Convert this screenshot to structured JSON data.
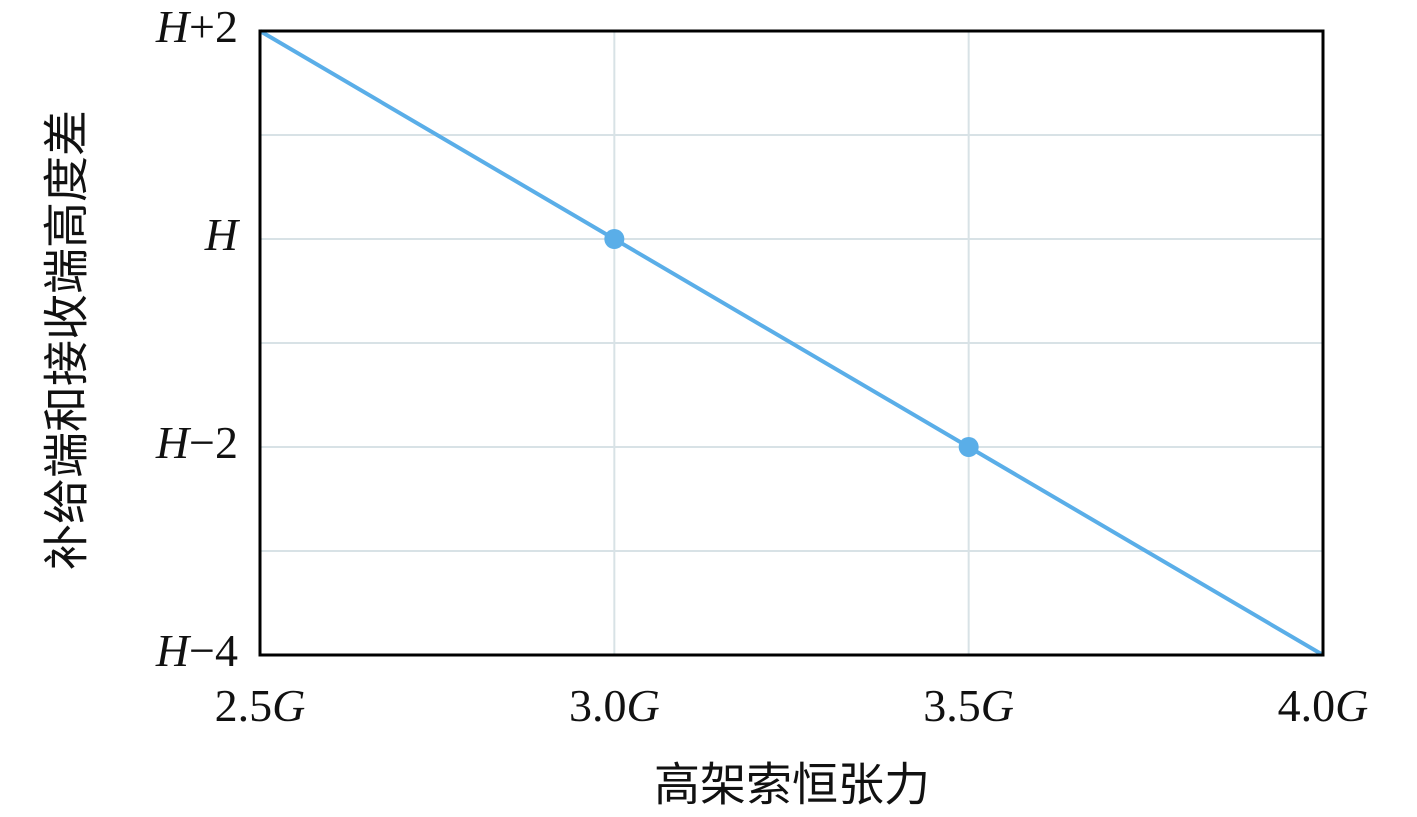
{
  "chart_data": {
    "type": "line",
    "x_label": "高架索恒张力",
    "y_label": "补给端和接收端高度差",
    "xlim": [
      2.5,
      4.0
    ],
    "xticks": [
      {
        "value": 2.5,
        "label": "2.5G"
      },
      {
        "value": 3.0,
        "label": "3.0G"
      },
      {
        "value": 3.5,
        "label": "3.5G"
      },
      {
        "value": 4.0,
        "label": "4.0G"
      }
    ],
    "ylim": [
      -4,
      2
    ],
    "yticks": [
      {
        "value": 2,
        "label": "H+2"
      },
      {
        "value": 0,
        "label": "H"
      },
      {
        "value": -2,
        "label": "H−2"
      },
      {
        "value": -4,
        "label": "H−4"
      }
    ],
    "y_minor_ticks": [
      1,
      -1,
      -3
    ],
    "grid": true,
    "series": [
      {
        "color": "#5aaee8",
        "x": [
          2.5,
          3.0,
          3.5,
          4.0
        ],
        "values": [
          2,
          0,
          -2,
          -4
        ],
        "markers": [
          false,
          true,
          true,
          false
        ]
      }
    ]
  }
}
